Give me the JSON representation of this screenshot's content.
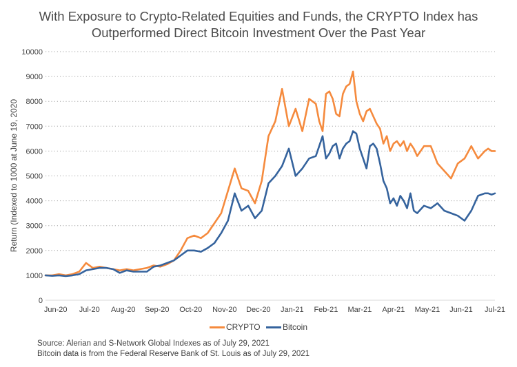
{
  "chart_data": {
    "type": "line",
    "title": "With Exposure to Crypto-Related Equities and Funds, the CRYPTO Index has Outperformed Direct Bitcoin Investment Over the Past Year",
    "title_lines": [
      "With Exposure to Crypto-Related Equities and Funds, the CRYPTO Index has",
      "Outperformed Direct Bitcoin Investment Over the Past Year"
    ],
    "xlabel": "",
    "ylabel": "Return (Indexed to 1000 at June 19, 2020",
    "ylim": [
      0,
      10000
    ],
    "yticks": [
      "0",
      "1000",
      "2000",
      "3000",
      "4000",
      "5000",
      "6000",
      "7000",
      "8000",
      "9000",
      "10000"
    ],
    "xticks": [
      "Jun-20",
      "Jul-20",
      "Aug-20",
      "Sep-20",
      "Oct-20",
      "Nov-20",
      "Dec-20",
      "Jan-21",
      "Feb-21",
      "Mar-21",
      "Apr-21",
      "May-21",
      "Jun-21",
      "Jul-21"
    ],
    "grid": "horizontal-dotted",
    "legend": "bottom-center",
    "x_range_months": [
      0,
      13.3
    ],
    "series": [
      {
        "name": "CRYPTO",
        "color": "#F58A3D",
        "x": [
          0,
          0.2,
          0.4,
          0.6,
          0.8,
          1.0,
          1.2,
          1.4,
          1.6,
          1.8,
          2.0,
          2.2,
          2.4,
          2.6,
          2.8,
          3.0,
          3.2,
          3.4,
          3.6,
          3.8,
          4.0,
          4.2,
          4.4,
          4.6,
          4.8,
          5.0,
          5.2,
          5.4,
          5.6,
          5.8,
          6.0,
          6.2,
          6.4,
          6.6,
          6.8,
          7.0,
          7.2,
          7.4,
          7.6,
          7.8,
          8.0,
          8.1,
          8.2,
          8.3,
          8.4,
          8.5,
          8.6,
          8.7,
          8.8,
          8.9,
          9.0,
          9.1,
          9.2,
          9.3,
          9.4,
          9.5,
          9.6,
          9.7,
          9.8,
          9.9,
          10.0,
          10.1,
          10.2,
          10.3,
          10.4,
          10.5,
          10.6,
          10.7,
          10.8,
          10.9,
          11.0,
          11.2,
          11.4,
          11.6,
          11.8,
          12.0,
          12.2,
          12.4,
          12.6,
          12.8,
          13.0,
          13.1,
          13.2,
          13.3
        ],
        "values": [
          1000,
          1000,
          1050,
          1000,
          1050,
          1150,
          1500,
          1300,
          1350,
          1300,
          1250,
          1200,
          1250,
          1200,
          1250,
          1300,
          1400,
          1350,
          1450,
          1600,
          2000,
          2500,
          2600,
          2500,
          2700,
          3100,
          3500,
          4400,
          5300,
          4500,
          4400,
          3900,
          4800,
          6600,
          7200,
          8500,
          7000,
          7700,
          6800,
          8100,
          7900,
          7200,
          6800,
          8300,
          8400,
          8100,
          7500,
          7400,
          8300,
          8600,
          8700,
          9200,
          8000,
          7500,
          7200,
          7600,
          7700,
          7400,
          7100,
          6900,
          6300,
          6600,
          6000,
          6300,
          6400,
          6200,
          6400,
          6000,
          6300,
          6100,
          5800,
          6200,
          6200,
          5500,
          5200,
          4900,
          5500,
          5700,
          6200,
          5700,
          6000,
          6100,
          6000,
          6000
        ]
      },
      {
        "name": "Bitcoin",
        "color": "#35639D",
        "x": [
          0,
          0.2,
          0.4,
          0.6,
          0.8,
          1.0,
          1.2,
          1.4,
          1.6,
          1.8,
          2.0,
          2.2,
          2.4,
          2.6,
          2.8,
          3.0,
          3.2,
          3.4,
          3.6,
          3.8,
          4.0,
          4.2,
          4.4,
          4.6,
          4.8,
          5.0,
          5.2,
          5.4,
          5.6,
          5.8,
          6.0,
          6.2,
          6.4,
          6.6,
          6.8,
          7.0,
          7.2,
          7.4,
          7.6,
          7.8,
          8.0,
          8.1,
          8.2,
          8.3,
          8.4,
          8.5,
          8.6,
          8.7,
          8.8,
          8.9,
          9.0,
          9.1,
          9.2,
          9.3,
          9.4,
          9.5,
          9.6,
          9.7,
          9.8,
          9.9,
          10.0,
          10.1,
          10.2,
          10.3,
          10.4,
          10.5,
          10.6,
          10.7,
          10.8,
          10.9,
          11.0,
          11.2,
          11.4,
          11.6,
          11.8,
          12.0,
          12.2,
          12.4,
          12.6,
          12.8,
          13.0,
          13.1,
          13.2,
          13.3
        ],
        "values": [
          1000,
          980,
          1000,
          970,
          1000,
          1050,
          1200,
          1250,
          1300,
          1300,
          1250,
          1100,
          1200,
          1150,
          1150,
          1150,
          1350,
          1400,
          1500,
          1600,
          1800,
          2000,
          2000,
          1950,
          2100,
          2300,
          2700,
          3200,
          4300,
          3600,
          3800,
          3300,
          3600,
          4700,
          5000,
          5400,
          6100,
          5000,
          5300,
          5700,
          5800,
          6200,
          6600,
          5700,
          5900,
          6200,
          6300,
          5700,
          6100,
          6300,
          6400,
          6800,
          6700,
          6100,
          5700,
          5300,
          6200,
          6300,
          6100,
          5500,
          4800,
          4500,
          3900,
          4100,
          3800,
          4200,
          4000,
          3700,
          4300,
          3600,
          3500,
          3800,
          3700,
          3900,
          3600,
          3500,
          3400,
          3200,
          3600,
          4200,
          4300,
          4300,
          4250,
          4300
        ]
      }
    ]
  },
  "legend": {
    "crypto_label": "CRYPTO",
    "bitcoin_label": "Bitcoin"
  },
  "source": {
    "line1": "Source: Alerian and S-Network Global Indexes as of July 29, 2021",
    "line2": "Bitcoin data is from the Federal Reserve Bank of St. Louis as of July 29, 2021"
  }
}
